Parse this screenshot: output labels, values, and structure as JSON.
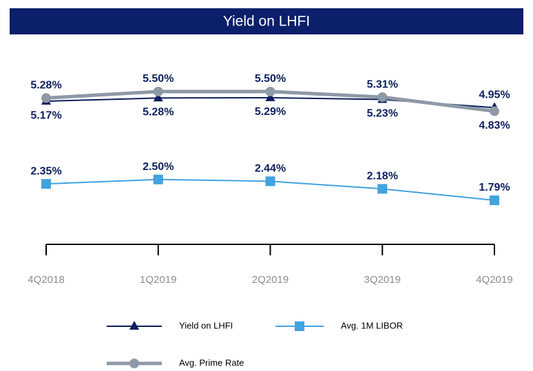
{
  "chart_data": {
    "type": "line",
    "title": "Yield on LHFI",
    "categories": [
      "4Q2018",
      "1Q2019",
      "2Q2019",
      "3Q2019",
      "4Q2019"
    ],
    "series": [
      {
        "name": "Yield on LHFI",
        "color": "#0b1f5e",
        "marker": "triangle",
        "values": [
          5.17,
          5.28,
          5.29,
          5.23,
          4.95
        ],
        "value_labels": [
          "5.17%",
          "5.28%",
          "5.29%",
          "5.23%",
          "4.95%"
        ]
      },
      {
        "name": "Avg. 1M LIBOR",
        "color": "#41a3e0",
        "marker": "square",
        "values": [
          2.35,
          2.5,
          2.44,
          2.18,
          1.79
        ],
        "value_labels": [
          "2.35%",
          "2.50%",
          "2.44%",
          "2.18%",
          "1.79%"
        ]
      },
      {
        "name": "Avg. Prime Rate",
        "color": "#8e99a6",
        "marker": "circle",
        "values": [
          5.28,
          5.5,
          5.5,
          5.31,
          4.83
        ],
        "value_labels": [
          "5.28%",
          "5.50%",
          "5.50%",
          "5.31%",
          "4.83%"
        ]
      }
    ]
  }
}
